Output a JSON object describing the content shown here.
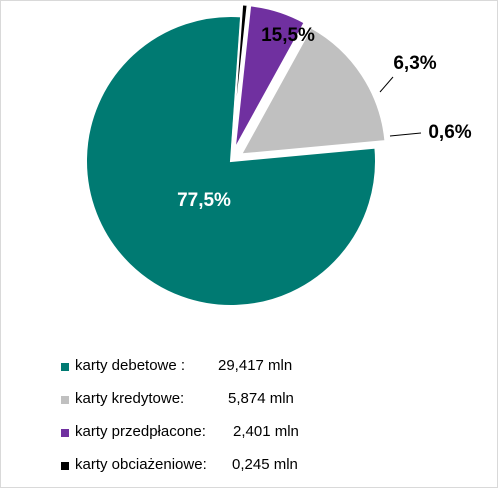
{
  "chart_data": {
    "type": "pie",
    "title": "",
    "slices": [
      {
        "label": "karty debetowe :",
        "percent_label": "77,5%",
        "percent": 77.5,
        "value_label": "29,417 mln",
        "value": 29.417,
        "color": "#007a72",
        "exploded": false
      },
      {
        "label": "karty kredytowe:",
        "percent_label": "15,5%",
        "percent": 15.5,
        "value_label": "5,874 mln",
        "value": 5.874,
        "color": "#c0c0c0",
        "exploded": true
      },
      {
        "label": "karty przedpłacone:",
        "percent_label": "6,3%",
        "percent": 6.3,
        "value_label": "2,401 mln",
        "value": 2.401,
        "color": "#7030a0",
        "exploded": true
      },
      {
        "label": "karty obciażeniowe:",
        "percent_label": "0,6%",
        "percent": 0.6,
        "value_label": "0,245 mln",
        "value": 0.245,
        "color": "#000000",
        "exploded": true
      }
    ],
    "legend_position": "bottom"
  }
}
